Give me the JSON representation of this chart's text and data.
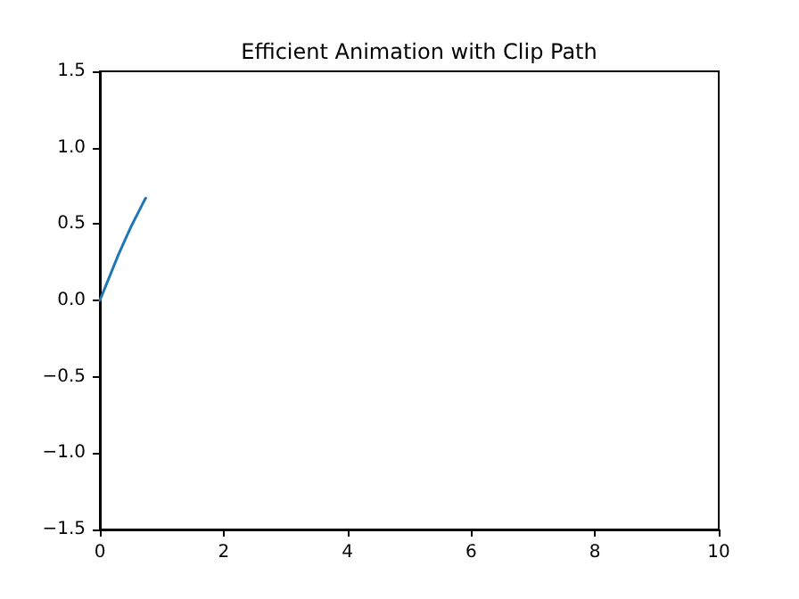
{
  "chart_data": {
    "type": "line",
    "title": "Efficient Animation with Clip Path",
    "series": [
      {
        "color": "#1f77b4",
        "x": [
          0,
          0.1,
          0.2,
          0.3,
          0.4,
          0.5,
          0.6,
          0.7,
          0.74
        ],
        "values": [
          0,
          0.1,
          0.2,
          0.3,
          0.39,
          0.48,
          0.56,
          0.64,
          0.67
        ]
      }
    ],
    "xlim": [
      0,
      10
    ],
    "xticks": [
      0,
      2,
      4,
      6,
      8,
      10
    ],
    "ylim": [
      -1.5,
      1.5
    ],
    "yticks": [
      {
        "value": -1.5,
        "label": "−1.5"
      },
      {
        "value": -1.0,
        "label": "−1.0"
      },
      {
        "value": -0.5,
        "label": "−0.5"
      },
      {
        "value": 0,
        "label": "0.0"
      },
      {
        "value": 0.5,
        "label": "0.5"
      },
      {
        "value": 1.0,
        "label": "1.0"
      },
      {
        "value": 1.5,
        "label": "1.5"
      }
    ],
    "grid": false,
    "marker": "none",
    "line_style": "solid"
  }
}
